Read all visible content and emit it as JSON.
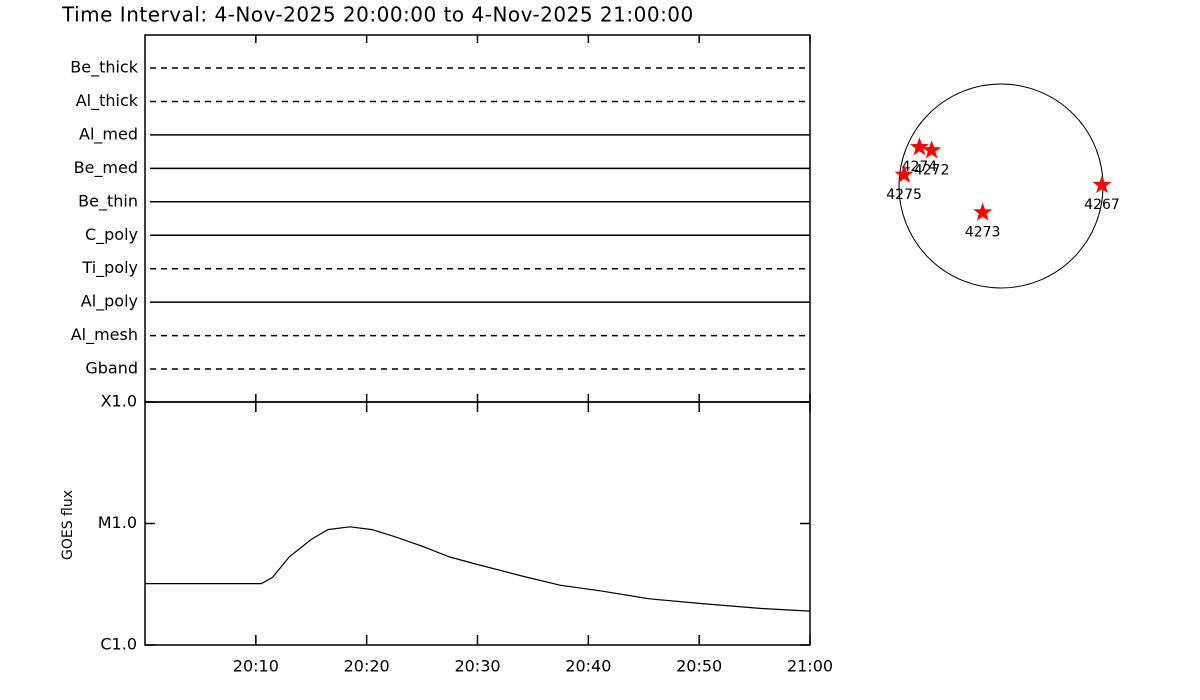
{
  "title": "Time Interval:  4-Nov-2025 20:00:00 to  4-Nov-2025 21:00:00",
  "chart_data": [
    {
      "type": "timeline",
      "categories": [
        "Be_thick",
        "Al_thick",
        "Al_med",
        "Be_med",
        "Be_thin",
        "C_poly",
        "Ti_poly",
        "Al_poly",
        "Al_mesh",
        "Gband"
      ],
      "styles": [
        "dashed",
        "dashed",
        "solid",
        "solid",
        "solid",
        "solid",
        "dashed",
        "solid",
        "dashed",
        "dashed"
      ],
      "color": "#000000"
    },
    {
      "type": "line",
      "ylabel": "GOES flux",
      "log_scale": true,
      "color": "#000000",
      "x": [
        0,
        10.5,
        11.5,
        13,
        15,
        16.5,
        18.5,
        20.5,
        22.5,
        25,
        27.5,
        30,
        34,
        37.5,
        41,
        45.5,
        50,
        55.5,
        60
      ],
      "values": [
        3.2e-06,
        3.2e-06,
        3.6e-06,
        5.3e-06,
        7.4e-06,
        8.9e-06,
        9.4e-06,
        8.9e-06,
        7.8e-06,
        6.5e-06,
        5.3e-06,
        4.6e-06,
        3.7e-06,
        3.1e-06,
        2.8e-06,
        2.4e-06,
        2.2e-06,
        2e-06,
        1.9e-06
      ],
      "xlim": [
        0,
        60
      ],
      "xticks": [
        {
          "value": 10,
          "label": "20:10"
        },
        {
          "value": 20,
          "label": "20:20"
        },
        {
          "value": 30,
          "label": "20:30"
        },
        {
          "value": 40,
          "label": "20:40"
        },
        {
          "value": 50,
          "label": "20:50"
        },
        {
          "value": 60,
          "label": "21:00"
        }
      ],
      "ylim": [
        1e-06,
        0.0001
      ],
      "yticks": [
        {
          "value": 1e-06,
          "label": "C1.0"
        },
        {
          "value": 1e-05,
          "label": "M1.0"
        },
        {
          "value": 0.0001,
          "label": "X1.0"
        }
      ]
    },
    {
      "type": "scatter",
      "color": "#ff0000",
      "labels": [
        "4274",
        "4272",
        "4275",
        "4273",
        "4267"
      ],
      "x": [
        -0.8,
        -0.68,
        -0.95,
        -0.18,
        0.99
      ],
      "values": [
        0.38,
        0.35,
        0.11,
        -0.26,
        0.01
      ],
      "xlim": [
        -1,
        1
      ],
      "ylim": [
        -1,
        1
      ]
    }
  ]
}
